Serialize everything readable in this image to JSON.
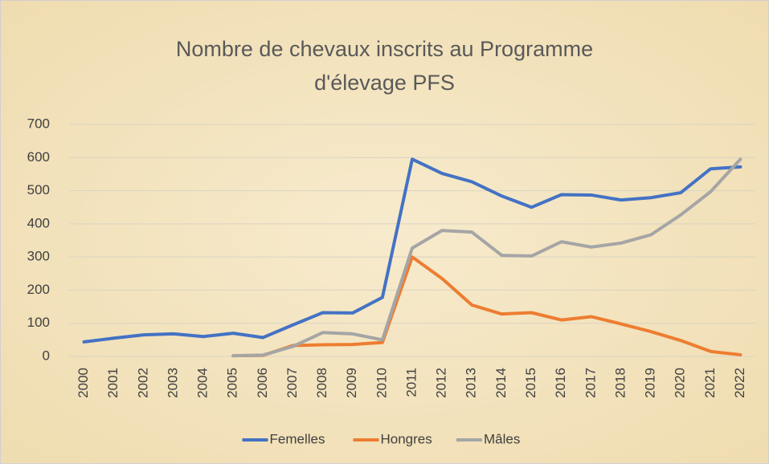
{
  "chart_data": {
    "type": "line",
    "title": "Nombre de chevaux inscrits au Programme d'élevage PFS",
    "categories": [
      "2000",
      "2001",
      "2002",
      "2003",
      "2004",
      "2005",
      "2006",
      "2007",
      "2008",
      "2009",
      "2010",
      "2011",
      "2012",
      "2013",
      "2014",
      "2015",
      "2016",
      "2017",
      "2018",
      "2019",
      "2020",
      "2021",
      "2022"
    ],
    "series": [
      {
        "name": "Femelles",
        "color": "#4472c4",
        "values": [
          44,
          55,
          65,
          68,
          60,
          70,
          57,
          95,
          132,
          131,
          178,
          595,
          552,
          527,
          484,
          450,
          488,
          487,
          472,
          479,
          494,
          566,
          572
        ]
      },
      {
        "name": "Hongres",
        "color": "#ed7d31",
        "values": [
          null,
          null,
          null,
          null,
          null,
          2,
          3,
          33,
          35,
          36,
          42,
          300,
          235,
          155,
          128,
          132,
          110,
          120,
          98,
          75,
          48,
          15,
          5
        ]
      },
      {
        "name": "Mâles",
        "color": "#a5a5a5",
        "values": [
          null,
          null,
          null,
          null,
          null,
          2,
          4,
          30,
          72,
          68,
          50,
          327,
          380,
          375,
          305,
          303,
          346,
          330,
          342,
          367,
          427,
          497,
          595
        ]
      }
    ],
    "ylim": [
      0,
      700
    ],
    "yticks": [
      0,
      100,
      200,
      300,
      400,
      500,
      600,
      700
    ],
    "grid": true,
    "legend": "bottom"
  }
}
